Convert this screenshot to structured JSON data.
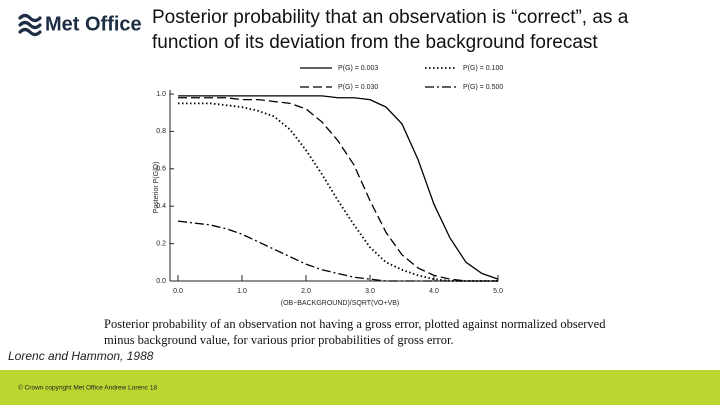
{
  "slide": {
    "logo": "Met Office",
    "title": [
      "Posterior probability that an observation is “correct”, as a",
      "function of its deviation from the background forecast"
    ],
    "reference": "Lorenc and Hammon, 1988",
    "footer": "© Crown copyright   Met Office  Andrew Lorenc  18"
  },
  "chart_data": {
    "type": "line",
    "ylabel": "Posterior P(G|D)",
    "xlabel": "(OB−BACKGROUND)/SQRT(VO+VB)",
    "caption": [
      "Posterior probability of an observation not having a gross error, plotted against normalized observed",
      "minus background value, for various prior probabilities of gross error."
    ],
    "x": [
      0,
      0.25,
      0.5,
      0.75,
      1,
      1.25,
      1.5,
      1.75,
      2,
      2.25,
      2.5,
      2.75,
      3,
      3.25,
      3.5,
      3.75,
      4,
      4.25,
      4.5,
      4.75,
      5
    ],
    "series": [
      {
        "name": "P(G) = 0.003",
        "color": "#000000",
        "dash": "solid",
        "values": [
          0.99,
          0.99,
          0.99,
          0.99,
          0.99,
          0.99,
          0.99,
          0.99,
          0.99,
          0.99,
          0.98,
          0.98,
          0.97,
          0.93,
          0.84,
          0.65,
          0.41,
          0.23,
          0.1,
          0.04,
          0.01
        ]
      },
      {
        "name": "P(G) = 0.030",
        "color": "#000000",
        "dash": "dashed",
        "values": [
          0.98,
          0.98,
          0.98,
          0.98,
          0.97,
          0.97,
          0.96,
          0.95,
          0.92,
          0.85,
          0.75,
          0.62,
          0.43,
          0.26,
          0.14,
          0.07,
          0.03,
          0.01,
          0,
          0,
          0
        ]
      },
      {
        "name": "P(G) = 0.100",
        "color": "#000000",
        "dash": "dotted",
        "values": [
          0.95,
          0.95,
          0.95,
          0.94,
          0.93,
          0.91,
          0.88,
          0.81,
          0.7,
          0.57,
          0.43,
          0.3,
          0.18,
          0.1,
          0.06,
          0.03,
          0.01,
          0,
          0,
          0,
          0
        ]
      },
      {
        "name": "P(G) = 0.500",
        "color": "#000000",
        "dash": "dashdot",
        "values": [
          0.32,
          0.31,
          0.3,
          0.28,
          0.25,
          0.21,
          0.17,
          0.13,
          0.09,
          0.06,
          0.04,
          0.02,
          0.01,
          0,
          0,
          0,
          0,
          0,
          0,
          0,
          0
        ]
      }
    ],
    "xlim": [
      0,
      5
    ],
    "ylim": [
      0,
      1
    ],
    "xticks": [
      {
        "value": 0,
        "label": "0.0"
      },
      {
        "value": 1,
        "label": "1.0"
      },
      {
        "value": 2,
        "label": "2.0"
      },
      {
        "value": 3,
        "label": "3.0"
      },
      {
        "value": 4,
        "label": "4.0"
      },
      {
        "value": 5,
        "label": "5.0"
      }
    ],
    "yticks": [
      {
        "value": 0,
        "label": "0.0"
      },
      {
        "value": 0.2,
        "label": "0.2"
      },
      {
        "value": 0.4,
        "label": "0.4"
      },
      {
        "value": 0.6,
        "label": "0.6"
      },
      {
        "value": 0.8,
        "label": "0.8"
      },
      {
        "value": 1,
        "label": "1.0"
      }
    ],
    "grid": false,
    "legend": "top"
  }
}
